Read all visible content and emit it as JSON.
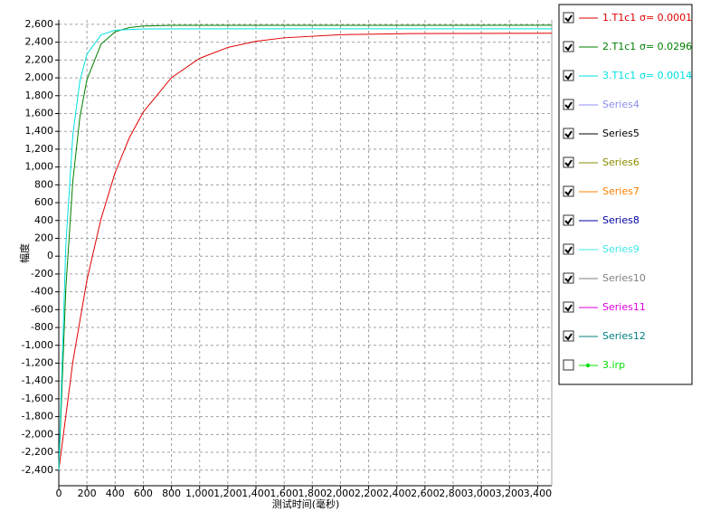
{
  "chart_data": {
    "type": "line",
    "y_label": "幅度",
    "x_label": "测试时间(毫秒)",
    "xlim": [
      0,
      3500
    ],
    "ylim": [
      -2575,
      2650
    ],
    "grid": true,
    "xticks": [
      0,
      200,
      400,
      600,
      800,
      {
        "value": 1000,
        "label": "1,000"
      },
      {
        "value": 1200,
        "label": "1,200"
      },
      {
        "value": 1400,
        "label": "1,400"
      },
      {
        "value": 1600,
        "label": "1,600"
      },
      {
        "value": 1800,
        "label": "1,800"
      },
      {
        "value": 2000,
        "label": "2,000"
      },
      {
        "value": 2200,
        "label": "2,200"
      },
      {
        "value": 2400,
        "label": "2,400"
      },
      {
        "value": 2600,
        "label": "2,600"
      },
      {
        "value": 2800,
        "label": "2,800"
      },
      {
        "value": 3000,
        "label": "3,000"
      },
      {
        "value": 3200,
        "label": "3,200"
      },
      {
        "value": 3400,
        "label": "3,400"
      }
    ],
    "yticks": [
      {
        "value": -2400,
        "label": "-2,400"
      },
      {
        "value": -2200,
        "label": "-2,200"
      },
      {
        "value": -2000,
        "label": "-2,000"
      },
      {
        "value": -1800,
        "label": "-1,800"
      },
      {
        "value": -1600,
        "label": "-1,600"
      },
      {
        "value": -1400,
        "label": "-1,400"
      },
      {
        "value": -1200,
        "label": "-1,200"
      },
      {
        "value": -1000,
        "label": "-1,000"
      },
      -800,
      -600,
      -400,
      -200,
      0,
      200,
      400,
      600,
      800,
      {
        "value": 1000,
        "label": "1,000"
      },
      {
        "value": 1200,
        "label": "1,200"
      },
      {
        "value": 1400,
        "label": "1,400"
      },
      {
        "value": 1600,
        "label": "1,600"
      },
      {
        "value": 1800,
        "label": "1,800"
      },
      {
        "value": 2000,
        "label": "2,000"
      },
      {
        "value": 2200,
        "label": "2,200"
      },
      {
        "value": 2400,
        "label": "2,400"
      },
      {
        "value": 2600,
        "label": "2,600"
      }
    ],
    "series": [
      {
        "name": "1.T1c1",
        "sigma": "σ= 0.0001",
        "color": "#e00000",
        "checked": true,
        "x": [
          0,
          100,
          200,
          300,
          400,
          500,
          600,
          800,
          1000,
          1200,
          1400,
          1600,
          2000,
          2500,
          3500
        ],
        "values": [
          -2400,
          -1182,
          -267,
          420,
          937,
          1326,
          1617,
          2002,
          2219,
          2341,
          2410,
          2449,
          2484,
          2496,
          2500
        ]
      },
      {
        "name": "2.T1c1",
        "sigma": "σ= 0.0296",
        "color": "#008000",
        "checked": true,
        "x": [
          0,
          50,
          100,
          150,
          200,
          300,
          400,
          500,
          600,
          800,
          3500
        ],
        "values": [
          -2400,
          -359,
          848,
          1562,
          1981,
          2378,
          2516,
          2564,
          2581,
          2589,
          2590
        ]
      },
      {
        "name": "3.T1c1",
        "sigma": "σ= 0.0014",
        "color": "#00e0e0",
        "checked": true,
        "x": [
          0,
          50,
          100,
          150,
          200,
          300,
          400,
          600,
          3500
        ],
        "values": [
          -2400,
          124,
          1362,
          1969,
          2266,
          2482,
          2534,
          2549,
          2550
        ]
      },
      {
        "name": "Series4",
        "color": "#8c8cf0",
        "checked": true
      },
      {
        "name": "Series5",
        "color": "#000000",
        "checked": true
      },
      {
        "name": "Series6",
        "color": "#8c8c00",
        "checked": true
      },
      {
        "name": "Series7",
        "color": "#ff8000",
        "checked": true
      },
      {
        "name": "Series8",
        "color": "#0000a0",
        "checked": true
      },
      {
        "name": "Series9",
        "color": "#40e8e8",
        "checked": true
      },
      {
        "name": "Series10",
        "color": "#808080",
        "checked": true
      },
      {
        "name": "Series11",
        "color": "#e000e0",
        "checked": true
      },
      {
        "name": "Series12",
        "color": "#008080",
        "checked": true
      },
      {
        "name": "3.irp",
        "color": "#00e000",
        "checked": false,
        "marker": true
      }
    ]
  }
}
